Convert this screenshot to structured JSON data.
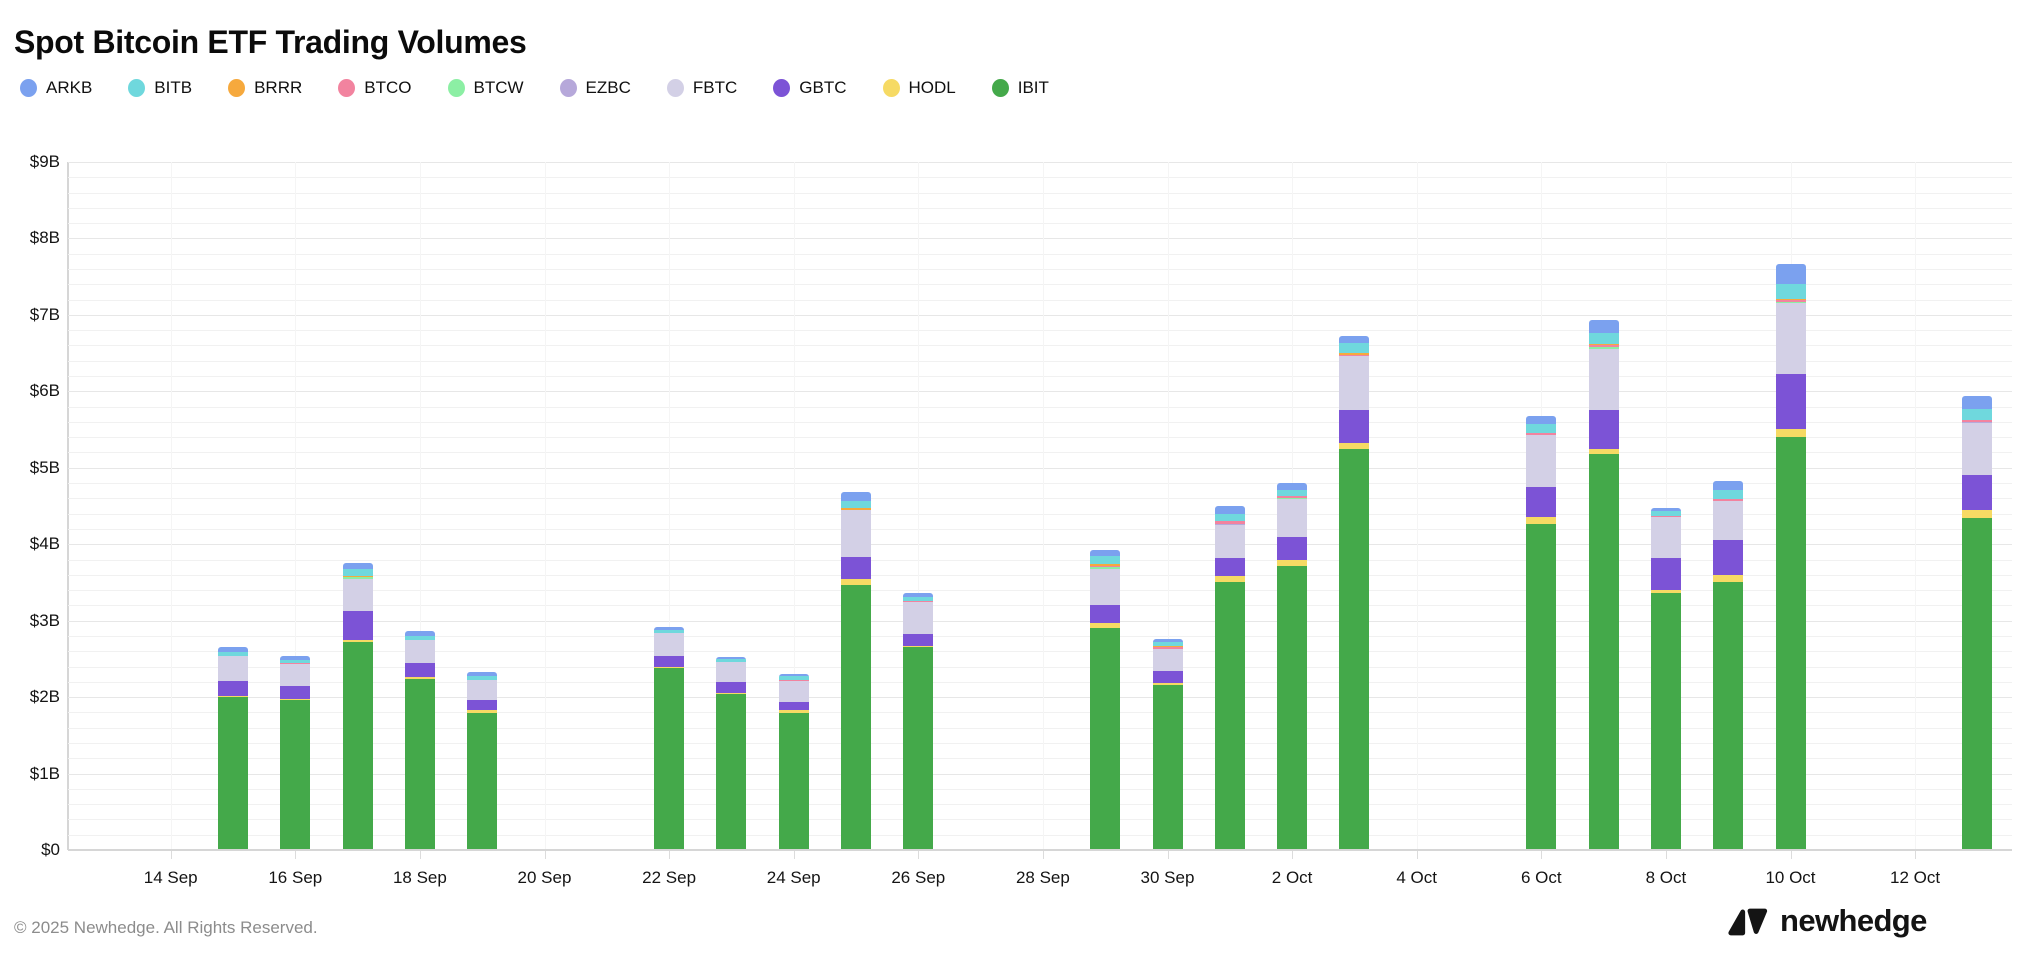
{
  "page": {
    "title": "Spot Bitcoin ETF Trading Volumes",
    "footer": "© 2025 Newhedge. All Rights Reserved.",
    "brand_text": "newhedge"
  },
  "chart_data": {
    "type": "bar",
    "stacked": true,
    "title": "Spot Bitcoin ETF Trading Volumes",
    "unit": "USD billions",
    "ylim": [
      0,
      9
    ],
    "y_tick_step": 1,
    "y_minor_step": 0.2,
    "y_tick_labels": [
      "$0",
      "$1B",
      "$2B",
      "$3B",
      "$4B",
      "$5B",
      "$6B",
      "$7B",
      "$8B",
      "$9B"
    ],
    "x_tick_labels": [
      "14 Sep",
      "16 Sep",
      "18 Sep",
      "20 Sep",
      "22 Sep",
      "24 Sep",
      "26 Sep",
      "28 Sep",
      "30 Sep",
      "2 Oct",
      "4 Oct",
      "6 Oct",
      "8 Oct",
      "10 Oct",
      "12 Oct"
    ],
    "grid": true,
    "legend_position": "top",
    "series": [
      {
        "ticker": "ARKB",
        "color": "#7ba1ef"
      },
      {
        "ticker": "BITB",
        "color": "#6fd8dd"
      },
      {
        "ticker": "BRRR",
        "color": "#f6a93d"
      },
      {
        "ticker": "BTCO",
        "color": "#f2839f"
      },
      {
        "ticker": "BTCW",
        "color": "#8cefa4"
      },
      {
        "ticker": "EZBC",
        "color": "#b6a8da"
      },
      {
        "ticker": "FBTC",
        "color": "#d3d0e6"
      },
      {
        "ticker": "GBTC",
        "color": "#7c53d6"
      },
      {
        "ticker": "HODL",
        "color": "#f6da64"
      },
      {
        "ticker": "IBIT",
        "color": "#44a94a"
      }
    ],
    "stack_order": [
      "IBIT",
      "HODL",
      "GBTC",
      "FBTC",
      "EZBC",
      "BTCW",
      "BTCO",
      "BRRR",
      "BITB",
      "ARKB"
    ],
    "bars": [
      {
        "date": "15 Sep",
        "total": 2.65,
        "values": {
          "IBIT": 2.0,
          "HODL": 0.02,
          "GBTC": 0.19,
          "FBTC": 0.33,
          "BITB": 0.05,
          "ARKB": 0.06
        }
      },
      {
        "date": "16 Sep",
        "total": 2.54,
        "values": {
          "IBIT": 1.96,
          "HODL": 0.02,
          "GBTC": 0.17,
          "FBTC": 0.28,
          "BTCO": 0.02,
          "BITB": 0.04,
          "ARKB": 0.05
        }
      },
      {
        "date": "17 Sep",
        "total": 3.76,
        "values": {
          "IBIT": 2.72,
          "HODL": 0.03,
          "GBTC": 0.38,
          "FBTC": 0.42,
          "BTCW": 0.02,
          "BRRR": 0.02,
          "BITB": 0.08,
          "ARKB": 0.09
        }
      },
      {
        "date": "18 Sep",
        "total": 2.86,
        "values": {
          "IBIT": 2.24,
          "HODL": 0.02,
          "GBTC": 0.19,
          "FBTC": 0.3,
          "BITB": 0.05,
          "ARKB": 0.06
        }
      },
      {
        "date": "19 Sep",
        "total": 2.33,
        "values": {
          "IBIT": 1.79,
          "HODL": 0.04,
          "GBTC": 0.13,
          "FBTC": 0.26,
          "BITB": 0.06,
          "ARKB": 0.05
        }
      },
      {
        "date": "22 Sep",
        "total": 2.92,
        "values": {
          "IBIT": 2.38,
          "HODL": 0.02,
          "GBTC": 0.14,
          "FBTC": 0.3,
          "BITB": 0.04,
          "ARKB": 0.04
        }
      },
      {
        "date": "23 Sep",
        "total": 2.53,
        "values": {
          "IBIT": 2.04,
          "HODL": 0.02,
          "GBTC": 0.14,
          "FBTC": 0.26,
          "BITB": 0.04,
          "ARKB": 0.03
        }
      },
      {
        "date": "24 Sep",
        "total": 2.3,
        "values": {
          "IBIT": 1.79,
          "HODL": 0.04,
          "GBTC": 0.11,
          "FBTC": 0.27,
          "BTCO": 0.02,
          "BITB": 0.04,
          "ARKB": 0.03
        }
      },
      {
        "date": "25 Sep",
        "total": 4.68,
        "values": {
          "IBIT": 3.47,
          "HODL": 0.08,
          "GBTC": 0.28,
          "FBTC": 0.62,
          "BRRR": 0.02,
          "BITB": 0.1,
          "ARKB": 0.11
        }
      },
      {
        "date": "26 Sep",
        "total": 3.36,
        "values": {
          "IBIT": 2.65,
          "HODL": 0.02,
          "GBTC": 0.16,
          "FBTC": 0.41,
          "BTCO": 0.02,
          "BITB": 0.05,
          "ARKB": 0.05
        }
      },
      {
        "date": "29 Sep",
        "total": 3.93,
        "values": {
          "IBIT": 2.9,
          "HODL": 0.07,
          "GBTC": 0.23,
          "FBTC": 0.48,
          "BTCW": 0.02,
          "BTCO": 0.02,
          "BRRR": 0.02,
          "BITB": 0.1,
          "ARKB": 0.09
        }
      },
      {
        "date": "30 Sep",
        "total": 2.76,
        "values": {
          "IBIT": 2.16,
          "HODL": 0.02,
          "GBTC": 0.16,
          "FBTC": 0.29,
          "BTCO": 0.02,
          "BRRR": 0.02,
          "BITB": 0.05,
          "ARKB": 0.04
        }
      },
      {
        "date": "1 Oct",
        "total": 4.5,
        "values": {
          "IBIT": 3.5,
          "HODL": 0.09,
          "GBTC": 0.23,
          "FBTC": 0.43,
          "EZBC": 0.02,
          "BTCO": 0.03,
          "BITB": 0.1,
          "ARKB": 0.1
        }
      },
      {
        "date": "2 Oct",
        "total": 4.8,
        "values": {
          "IBIT": 3.71,
          "HODL": 0.09,
          "GBTC": 0.29,
          "FBTC": 0.5,
          "BTCW": 0.02,
          "BTCO": 0.02,
          "BITB": 0.08,
          "ARKB": 0.09
        }
      },
      {
        "date": "3 Oct",
        "total": 6.73,
        "values": {
          "IBIT": 5.24,
          "HODL": 0.08,
          "GBTC": 0.44,
          "FBTC": 0.7,
          "BTCO": 0.02,
          "BRRR": 0.02,
          "BITB": 0.13,
          "ARKB": 0.1
        }
      },
      {
        "date": "6 Oct",
        "total": 5.68,
        "values": {
          "IBIT": 4.27,
          "HODL": 0.09,
          "GBTC": 0.39,
          "FBTC": 0.68,
          "BTCO": 0.03,
          "BITB": 0.11,
          "ARKB": 0.11
        }
      },
      {
        "date": "7 Oct",
        "total": 6.93,
        "values": {
          "IBIT": 5.18,
          "HODL": 0.07,
          "GBTC": 0.51,
          "FBTC": 0.8,
          "BTCW": 0.02,
          "BTCO": 0.02,
          "BRRR": 0.02,
          "BITB": 0.14,
          "ARKB": 0.17
        }
      },
      {
        "date": "8 Oct",
        "total": 4.48,
        "values": {
          "IBIT": 3.36,
          "HODL": 0.04,
          "GBTC": 0.42,
          "FBTC": 0.53,
          "BTCO": 0.02,
          "BITB": 0.06,
          "ARKB": 0.05
        }
      },
      {
        "date": "9 Oct",
        "total": 4.83,
        "values": {
          "IBIT": 3.51,
          "HODL": 0.09,
          "GBTC": 0.46,
          "FBTC": 0.5,
          "BTCO": 0.03,
          "BITB": 0.12,
          "ARKB": 0.12
        }
      },
      {
        "date": "10 Oct",
        "total": 7.66,
        "values": {
          "IBIT": 5.4,
          "HODL": 0.11,
          "GBTC": 0.72,
          "FBTC": 0.92,
          "BTCW": 0.02,
          "BTCO": 0.02,
          "BRRR": 0.02,
          "BITB": 0.2,
          "ARKB": 0.25
        }
      },
      {
        "date": "13 Oct",
        "total": 5.94,
        "values": {
          "IBIT": 4.34,
          "HODL": 0.11,
          "GBTC": 0.46,
          "FBTC": 0.67,
          "EZBC": 0.02,
          "BTCO": 0.03,
          "BITB": 0.14,
          "ARKB": 0.17
        }
      }
    ]
  }
}
